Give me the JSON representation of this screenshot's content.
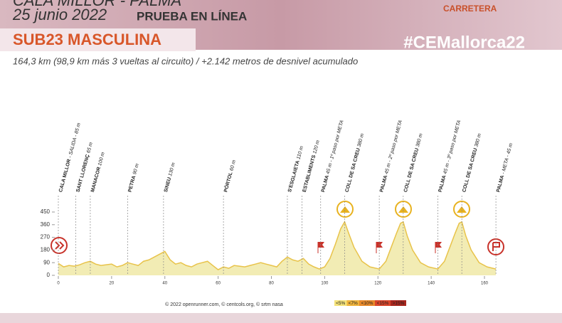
{
  "header": {
    "route": "CALA MILLOR - PALMA",
    "date": "25 junio 2022",
    "race": "PRUEBA EN LÍNEA",
    "category": "SUB23 MASCULINA",
    "hashtag": "#CEMallorca22",
    "logo": "CARRETERA",
    "summary": "164,3 km (98,9 km más 3 vueltas al circuito) / +2.142 metros de desnivel acumulado"
  },
  "chart_data": {
    "type": "area",
    "x": [
      0,
      2,
      4,
      6,
      8,
      10,
      12,
      14,
      16,
      18,
      20,
      22,
      24,
      26,
      28,
      30,
      32,
      34,
      36,
      38,
      40,
      42,
      44,
      46,
      48,
      50,
      52,
      54,
      56,
      58,
      60,
      62,
      64,
      66,
      68,
      70,
      72,
      74,
      76,
      78,
      80,
      82,
      84,
      86,
      88,
      90,
      92,
      94,
      96,
      98,
      100,
      102,
      104,
      106,
      107.5,
      109,
      111,
      114,
      117,
      120.5,
      123,
      125,
      127,
      128.5,
      129.5,
      131,
      133,
      136,
      139,
      142.5,
      145,
      147,
      149,
      150.5,
      151.5,
      153,
      155,
      158,
      161,
      164.3
    ],
    "values": [
      85,
      60,
      70,
      65,
      75,
      90,
      100,
      80,
      70,
      75,
      80,
      60,
      70,
      90,
      80,
      70,
      100,
      110,
      130,
      150,
      170,
      110,
      80,
      90,
      70,
      60,
      80,
      90,
      100,
      70,
      40,
      60,
      50,
      70,
      65,
      60,
      70,
      80,
      90,
      80,
      70,
      60,
      100,
      130,
      110,
      100,
      120,
      80,
      60,
      45,
      60,
      120,
      220,
      330,
      380,
      300,
      200,
      100,
      60,
      45,
      100,
      200,
      300,
      370,
      380,
      280,
      180,
      90,
      60,
      45,
      100,
      200,
      300,
      370,
      380,
      280,
      180,
      90,
      60,
      45
    ],
    "color": "#e8c34a",
    "xlim": [
      0,
      160
    ],
    "xticks": [
      0,
      20,
      40,
      60,
      80,
      100,
      120,
      140,
      160
    ],
    "ylim": [
      0,
      450
    ],
    "yticks": [
      0,
      90,
      180,
      270,
      360,
      450
    ],
    "waypoints": [
      {
        "name": "CALA MILLOR",
        "detail": "- SALIDA - 85 m",
        "km": 0
      },
      {
        "name": "SANT LLORENÇ",
        "detail": "65 m",
        "km": 6.5
      },
      {
        "name": "MANACOR",
        "detail": "100 m",
        "km": 12
      },
      {
        "name": "PETRA",
        "detail": "90 m",
        "km": 26
      },
      {
        "name": "SINEU",
        "detail": "130 m",
        "km": 39.5
      },
      {
        "name": "PÒRTOL",
        "detail": "60 m",
        "km": 62
      },
      {
        "name": "S'ESGLAIETA",
        "detail": "110 m",
        "km": 86
      },
      {
        "name": "ESTABLIMENTS",
        "detail": "120 m",
        "km": 91.5
      },
      {
        "name": "PALMA",
        "detail": "45 m - 1º paso por META",
        "km": 98.5
      },
      {
        "name": "COLL DE SA CREU",
        "detail": "380 m",
        "km": 107.5
      },
      {
        "name": "PALMA",
        "detail": "45 m - 2º paso por META",
        "km": 120.5
      },
      {
        "name": "COLL DE SA CREU",
        "detail": "380 m",
        "km": 129.5
      },
      {
        "name": "PALMA",
        "detail": "45 m - 3º paso por META",
        "km": 142.5
      },
      {
        "name": "COLL DE SA CREU",
        "detail": "380 m",
        "km": 151.5
      },
      {
        "name": "PALMA",
        "detail": "- META - 45 m",
        "km": 164.3
      }
    ],
    "legend": [
      {
        "label": "<5%",
        "color": "#f4e27a"
      },
      {
        "label": "<7%",
        "color": "#f0b43c"
      },
      {
        "label": "<10%",
        "color": "#e8892a"
      },
      {
        "label": "<15%",
        "color": "#d9452a"
      },
      {
        "label": ">15%",
        "color": "#a8261e"
      }
    ],
    "credits": "© 2022 openrunner.com, © centcols.org, © srtm nasa"
  }
}
